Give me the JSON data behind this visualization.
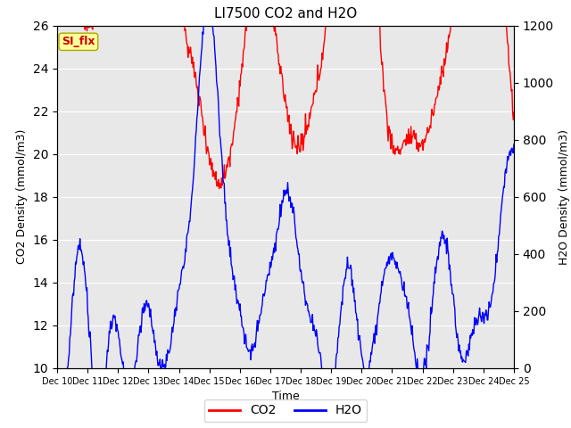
{
  "title": "LI7500 CO2 and H2O",
  "xlabel": "Time",
  "ylabel_left": "CO2 Density (mmol/m3)",
  "ylabel_right": "H2O Density (mmol/m3)",
  "ylim_left": [
    10,
    26
  ],
  "ylim_right": [
    0,
    1200
  ],
  "yticks_left": [
    10,
    12,
    14,
    16,
    18,
    20,
    22,
    24,
    26
  ],
  "yticks_right": [
    0,
    200,
    400,
    600,
    800,
    1000,
    1200
  ],
  "co2_color": "#FF0000",
  "h2o_color": "#0000FF",
  "line_width": 1.0,
  "bg_color": "#E8E8E8",
  "legend_label_co2": "CO2",
  "legend_label_h2o": "H2O",
  "annotation_text": "SI_flx",
  "annotation_box_facecolor": "#FFFF99",
  "annotation_box_edgecolor": "#AAAA00",
  "annotation_text_color": "#CC0000",
  "x_tick_labels": [
    "Dec 10",
    "Dec 11",
    "Dec 12",
    "Dec 13",
    "Dec 14",
    "Dec 15",
    "Dec 16",
    "Dec 17",
    "Dec 18",
    "Dec 19",
    "Dec 20",
    "Dec 21",
    "Dec 22",
    "Dec 23",
    "Dec 24",
    "Dec 25"
  ],
  "num_points_per_day": 48,
  "total_days": 15,
  "figsize": [
    6.4,
    4.8
  ],
  "dpi": 100
}
